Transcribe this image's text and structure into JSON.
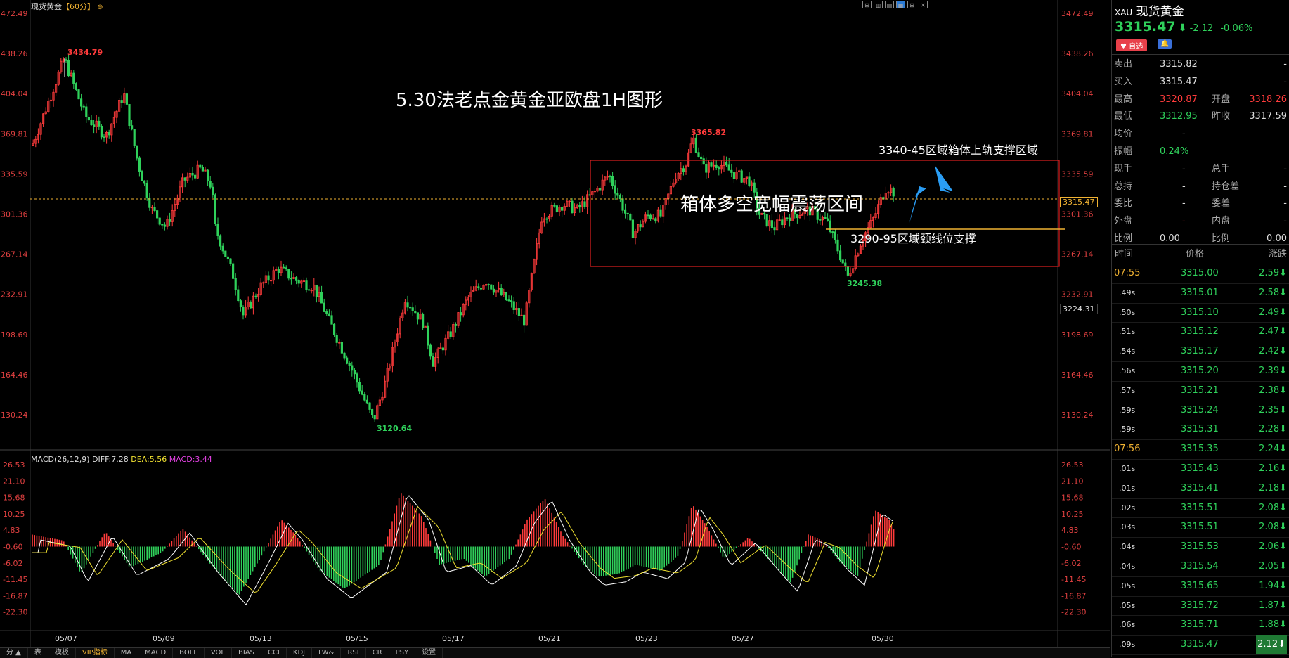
{
  "chart": {
    "title": "现货黄金",
    "period": "【60分】",
    "annotation_title": "5.30法老点金黄金亚欧盘1H图形",
    "annotation_box": "箱体多空宽幅震荡区间",
    "annotation_resistance": "3340-45区域箱体上轨支撑区域",
    "annotation_support": "3290-95区域颈线位支撑",
    "current_price_tag": "3315.47",
    "secondary_price_tag": "3224.31",
    "high_label": "3434.79",
    "low_label": "3120.64",
    "peak_label": "3365.82",
    "trough_label": "3245.38",
    "macd_header": {
      "name": "MACD(26,12,9)",
      "diff": "DIFF:7.28",
      "dea": "DEA:5.56",
      "macd": "MACD:3.44"
    },
    "colors": {
      "up": "#ff3b3b",
      "down": "#2fd15b",
      "dea": "#f0e030",
      "diff": "#ffffff",
      "box": "#e02020",
      "support_line": "#f0b232",
      "arrow": "#2a9df4"
    }
  },
  "chart_data": {
    "type": "candlestick",
    "price_axis_ticks": [
      "3472.49",
      "3438.26",
      "3404.04",
      "3369.81",
      "3335.59",
      "3301.36",
      "3267.14",
      "3232.91",
      "3198.69",
      "3164.46",
      "3130.24"
    ],
    "price_axis_ticks_left": [
      "472.49",
      "438.26",
      "404.04",
      "369.81",
      "335.59",
      "301.36",
      "267.14",
      "232.91",
      "198.69",
      "164.46",
      "130.24"
    ],
    "macd_axis_ticks": [
      "26.53",
      "21.10",
      "15.68",
      "10.25",
      "4.83",
      "-0.60",
      "-6.02",
      "-11.45",
      "-16.87",
      "-22.30"
    ],
    "x_ticks": [
      "05/07",
      "05/09",
      "05/13",
      "05/15",
      "05/17",
      "05/21",
      "05/23",
      "05/27",
      "05/30"
    ],
    "ylim": [
      3110,
      3480
    ],
    "macd_ylim": [
      -27,
      28
    ]
  },
  "bottom_tabs": [
    "分 ▲",
    "表",
    "模板",
    "VIP指标",
    "MA",
    "MACD",
    "BOLL",
    "VOL",
    "BIAS",
    "CCI",
    "KDJ",
    "LW&",
    "RSI",
    "CR",
    "PSY",
    "设置"
  ],
  "quote": {
    "symbol": "XAU",
    "name": "现货黄金",
    "price": "3315.47",
    "change": "-2.12",
    "change_pct": "-0.06%",
    "fav_button": "自选",
    "rows": [
      {
        "l1": "卖出",
        "v1": "3315.82",
        "c1": "white",
        "l2": "",
        "v2": "-",
        "c2": "white"
      },
      {
        "l1": "买入",
        "v1": "3315.47",
        "c1": "white",
        "l2": "",
        "v2": "-",
        "c2": "white"
      },
      {
        "l1": "最高",
        "v1": "3320.87",
        "c1": "red",
        "l2": "开盘",
        "v2": "3318.26",
        "c2": "red"
      },
      {
        "l1": "最低",
        "v1": "3312.95",
        "c1": "green",
        "l2": "昨收",
        "v2": "3317.59",
        "c2": "white"
      },
      {
        "l1": "均价",
        "v1": "-",
        "c1": "white",
        "l2": "",
        "v2": "",
        "c2": "white"
      },
      {
        "l1": "振幅",
        "v1": "0.24%",
        "c1": "green",
        "l2": "",
        "v2": "",
        "c2": "white"
      },
      {
        "l1": "现手",
        "v1": "-",
        "c1": "white",
        "l2": "总手",
        "v2": "-",
        "c2": "white"
      },
      {
        "l1": "总持",
        "v1": "-",
        "c1": "white",
        "l2": "持仓差",
        "v2": "-",
        "c2": "white"
      },
      {
        "l1": "委比",
        "v1": "-",
        "c1": "white",
        "l2": "委差",
        "v2": "-",
        "c2": "white"
      },
      {
        "l1": "外盘",
        "v1": "-",
        "c1": "red",
        "l2": "内盘",
        "v2": "-",
        "c2": "white"
      },
      {
        "l1": "比例",
        "v1": "0.00",
        "c1": "white",
        "l2": "比例",
        "v2": "0.00",
        "c2": "white"
      }
    ],
    "ticks_header": {
      "time": "时间",
      "price": "价格",
      "change": "涨跌"
    },
    "ticks": [
      {
        "t": "07:55",
        "p": "3315.00",
        "c": "2.59",
        "hl": true
      },
      {
        "t": ".49s",
        "p": "3315.01",
        "c": "2.58",
        "hl": false
      },
      {
        "t": ".50s",
        "p": "3315.10",
        "c": "2.49",
        "hl": false
      },
      {
        "t": ".51s",
        "p": "3315.12",
        "c": "2.47",
        "hl": false
      },
      {
        "t": ".54s",
        "p": "3315.17",
        "c": "2.42",
        "hl": false
      },
      {
        "t": ".56s",
        "p": "3315.20",
        "c": "2.39",
        "hl": false
      },
      {
        "t": ".57s",
        "p": "3315.21",
        "c": "2.38",
        "hl": false
      },
      {
        "t": ".59s",
        "p": "3315.24",
        "c": "2.35",
        "hl": false
      },
      {
        "t": ".59s",
        "p": "3315.31",
        "c": "2.28",
        "hl": false
      },
      {
        "t": "07:56",
        "p": "3315.35",
        "c": "2.24",
        "hl": true
      },
      {
        "t": ".01s",
        "p": "3315.43",
        "c": "2.16",
        "hl": false
      },
      {
        "t": ".01s",
        "p": "3315.41",
        "c": "2.18",
        "hl": false
      },
      {
        "t": ".02s",
        "p": "3315.51",
        "c": "2.08",
        "hl": false
      },
      {
        "t": ".03s",
        "p": "3315.51",
        "c": "2.08",
        "hl": false
      },
      {
        "t": ".04s",
        "p": "3315.53",
        "c": "2.06",
        "hl": false
      },
      {
        "t": ".04s",
        "p": "3315.54",
        "c": "2.05",
        "hl": false
      },
      {
        "t": ".05s",
        "p": "3315.65",
        "c": "1.94",
        "hl": false
      },
      {
        "t": ".05s",
        "p": "3315.72",
        "c": "1.87",
        "hl": false
      },
      {
        "t": ".06s",
        "p": "3315.71",
        "c": "1.88",
        "hl": false
      },
      {
        "t": ".09s",
        "p": "3315.47",
        "c": "2.12",
        "hl": false
      }
    ]
  }
}
